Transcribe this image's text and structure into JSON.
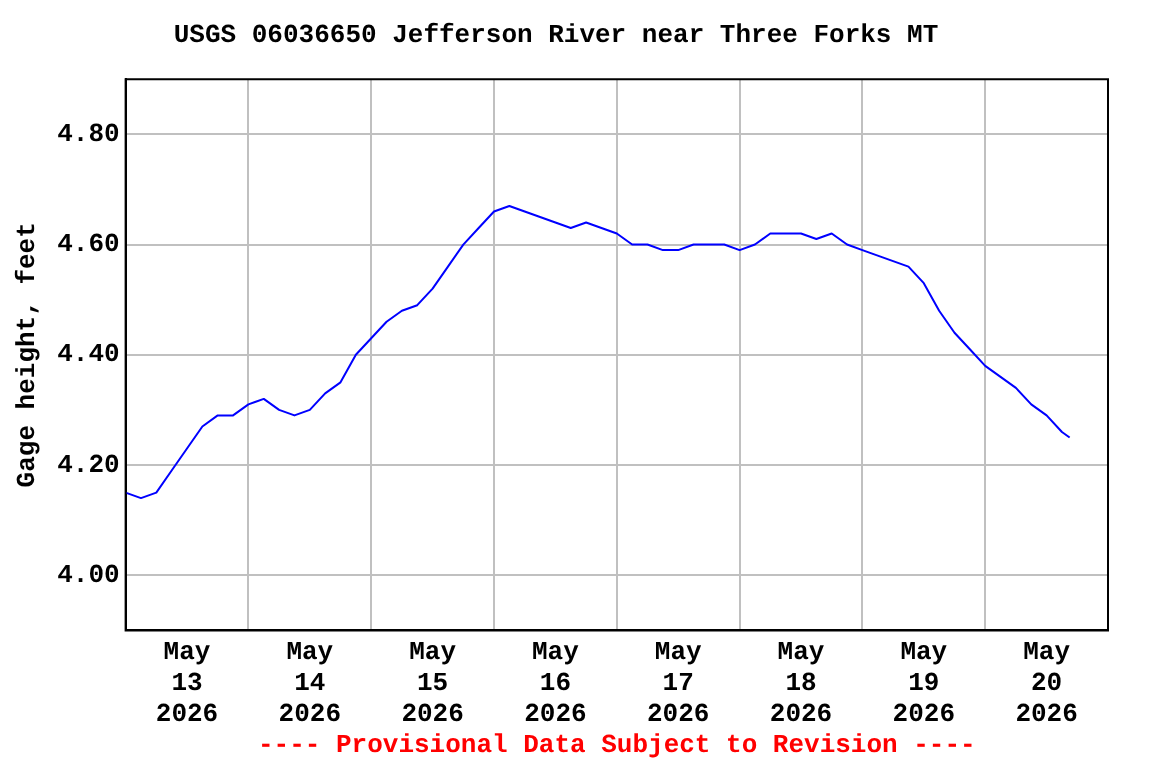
{
  "chart_data": {
    "type": "line",
    "title": "USGS 06036650 Jefferson River near Three Forks MT",
    "ylabel": "Gage height, feet",
    "annotations": [
      "---- Provisional Data Subject to Revision ----"
    ],
    "x": [
      "2026-05-13T00:00",
      "2026-05-13T03:00",
      "2026-05-13T06:00",
      "2026-05-13T09:00",
      "2026-05-13T12:00",
      "2026-05-13T15:00",
      "2026-05-13T18:00",
      "2026-05-13T21:00",
      "2026-05-14T00:00",
      "2026-05-14T03:00",
      "2026-05-14T06:00",
      "2026-05-14T09:00",
      "2026-05-14T12:00",
      "2026-05-14T15:00",
      "2026-05-14T18:00",
      "2026-05-14T21:00",
      "2026-05-15T00:00",
      "2026-05-15T03:00",
      "2026-05-15T06:00",
      "2026-05-15T09:00",
      "2026-05-15T12:00",
      "2026-05-15T15:00",
      "2026-05-15T18:00",
      "2026-05-15T21:00",
      "2026-05-16T00:00",
      "2026-05-16T03:00",
      "2026-05-16T06:00",
      "2026-05-16T09:00",
      "2026-05-16T12:00",
      "2026-05-16T15:00",
      "2026-05-16T18:00",
      "2026-05-16T21:00",
      "2026-05-17T00:00",
      "2026-05-17T03:00",
      "2026-05-17T06:00",
      "2026-05-17T09:00",
      "2026-05-17T12:00",
      "2026-05-17T15:00",
      "2026-05-17T18:00",
      "2026-05-17T21:00",
      "2026-05-18T00:00",
      "2026-05-18T03:00",
      "2026-05-18T06:00",
      "2026-05-18T09:00",
      "2026-05-18T12:00",
      "2026-05-18T15:00",
      "2026-05-18T18:00",
      "2026-05-18T21:00",
      "2026-05-19T00:00",
      "2026-05-19T03:00",
      "2026-05-19T06:00",
      "2026-05-19T09:00",
      "2026-05-19T12:00",
      "2026-05-19T15:00",
      "2026-05-19T18:00",
      "2026-05-19T21:00",
      "2026-05-20T00:00",
      "2026-05-20T03:00",
      "2026-05-20T06:00",
      "2026-05-20T09:00",
      "2026-05-20T12:00",
      "2026-05-20T15:00",
      "2026-05-20T16:30"
    ],
    "series": [
      {
        "color": "#0000ff",
        "values": [
          4.15,
          4.14,
          4.15,
          4.19,
          4.23,
          4.27,
          4.29,
          4.29,
          4.31,
          4.32,
          4.3,
          4.29,
          4.3,
          4.33,
          4.35,
          4.4,
          4.43,
          4.46,
          4.48,
          4.49,
          4.52,
          4.56,
          4.6,
          4.63,
          4.66,
          4.67,
          4.66,
          4.65,
          4.64,
          4.63,
          4.64,
          4.63,
          4.62,
          4.6,
          4.6,
          4.59,
          4.59,
          4.6,
          4.6,
          4.6,
          4.59,
          4.6,
          4.62,
          4.62,
          4.62,
          4.61,
          4.62,
          4.6,
          4.59,
          4.58,
          4.57,
          4.56,
          4.53,
          4.48,
          4.44,
          4.41,
          4.38,
          4.36,
          4.34,
          4.31,
          4.29,
          4.26,
          4.25
        ]
      }
    ],
    "xlim": [
      "2026-05-13T00:00",
      "2026-05-21T00:00"
    ],
    "xticks": [
      {
        "value": "2026-05-13T12:00",
        "label": "May 13 2026"
      },
      {
        "value": "2026-05-14T00:00",
        "label": null
      },
      {
        "value": "2026-05-14T12:00",
        "label": "May 14 2026"
      },
      {
        "value": "2026-05-15T00:00",
        "label": null
      },
      {
        "value": "2026-05-15T12:00",
        "label": "May 15 2026"
      },
      {
        "value": "2026-05-16T00:00",
        "label": null
      },
      {
        "value": "2026-05-16T12:00",
        "label": "May 16 2026"
      },
      {
        "value": "2026-05-17T00:00",
        "label": null
      },
      {
        "value": "2026-05-17T12:00",
        "label": "May 17 2026"
      },
      {
        "value": "2026-05-18T00:00",
        "label": null
      },
      {
        "value": "2026-05-18T12:00",
        "label": "May 18 2026"
      },
      {
        "value": "2026-05-19T00:00",
        "label": null
      },
      {
        "value": "2026-05-19T12:00",
        "label": "May 19 2026"
      },
      {
        "value": "2026-05-20T00:00",
        "label": null
      },
      {
        "value": "2026-05-20T12:00",
        "label": "May 20 2026"
      }
    ],
    "ylim": [
      3.9,
      4.9
    ],
    "yticks": [
      {
        "value": 4.0,
        "label": "4.00"
      },
      {
        "value": 4.2,
        "label": "4.20"
      },
      {
        "value": 4.4,
        "label": "4.40"
      },
      {
        "value": 4.6,
        "label": "4.60"
      },
      {
        "value": 4.8,
        "label": "4.80"
      }
    ],
    "grid": true,
    "marker": "none",
    "line_style": "solid",
    "legend": false
  }
}
